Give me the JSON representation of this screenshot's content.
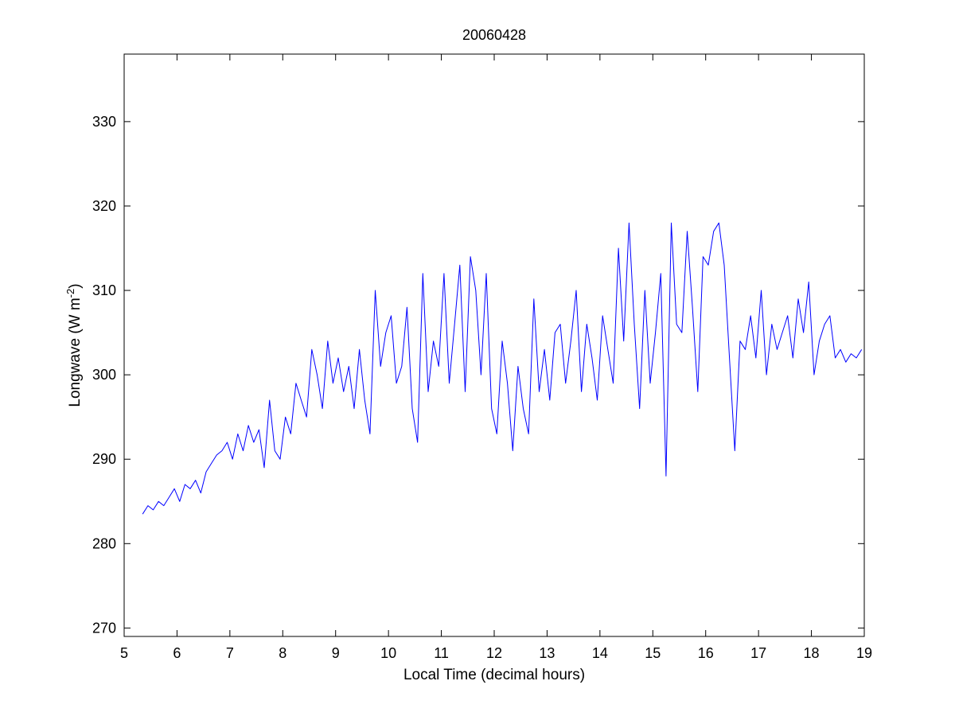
{
  "chart_data": {
    "type": "line",
    "title": "20060428",
    "xlabel": "Local Time (decimal hours)",
    "ylabel_main": "Longwave (W m",
    "ylabel_superscript": "-2",
    "ylabel_close": ")",
    "xlim": [
      5,
      19
    ],
    "ylim": [
      269,
      338
    ],
    "xticks": [
      "5",
      "6",
      "7",
      "8",
      "9",
      "10",
      "11",
      "12",
      "13",
      "14",
      "15",
      "16",
      "17",
      "18",
      "19"
    ],
    "yticks": [
      "270",
      "280",
      "290",
      "300",
      "310",
      "320",
      "330"
    ],
    "grid": false,
    "series_color": "#0000ff",
    "series": [
      {
        "x": [
          5.35,
          5.45,
          5.55,
          5.65,
          5.75,
          5.85,
          5.95,
          6.05,
          6.15,
          6.25,
          6.35,
          6.45,
          6.55,
          6.65,
          6.75,
          6.85,
          6.95,
          7.05,
          7.15,
          7.25,
          7.35,
          7.45,
          7.55,
          7.65,
          7.75,
          7.85,
          7.95,
          8.05,
          8.15,
          8.25,
          8.35,
          8.45,
          8.55,
          8.65,
          8.75,
          8.85,
          8.95,
          9.05,
          9.15,
          9.25,
          9.35,
          9.45,
          9.55,
          9.65,
          9.75,
          9.85,
          9.95,
          10.05,
          10.15,
          10.25,
          10.35,
          10.45,
          10.55,
          10.65,
          10.75,
          10.85,
          10.95,
          11.05,
          11.15,
          11.25,
          11.35,
          11.45,
          11.55,
          11.65,
          11.75,
          11.85,
          11.95,
          12.05,
          12.15,
          12.25,
          12.35,
          12.45,
          12.55,
          12.65,
          12.75,
          12.85,
          12.95,
          13.05,
          13.15,
          13.25,
          13.35,
          13.45,
          13.55,
          13.65,
          13.75,
          13.85,
          13.95,
          14.05,
          14.15,
          14.25,
          14.35,
          14.45,
          14.55,
          14.65,
          14.75,
          14.85,
          14.95,
          15.05,
          15.15,
          15.25,
          15.35,
          15.45,
          15.55,
          15.65,
          15.75,
          15.85,
          15.95,
          16.05,
          16.15,
          16.25,
          16.35,
          16.45,
          16.55,
          16.65,
          16.75,
          16.85,
          16.95,
          17.05,
          17.15,
          17.25,
          17.35,
          17.45,
          17.55,
          17.65,
          17.75,
          17.85,
          17.95,
          18.05,
          18.15,
          18.25,
          18.35,
          18.45,
          18.55,
          18.65,
          18.75,
          18.85,
          18.95
        ],
        "y": [
          283.5,
          284.5,
          284,
          285,
          284.5,
          285.5,
          286.5,
          285,
          287,
          286.5,
          287.5,
          286,
          288.5,
          289.5,
          290.5,
          291,
          292,
          290,
          293,
          291,
          294,
          292,
          293.5,
          289,
          297,
          291,
          290,
          295,
          293,
          299,
          297,
          295,
          303,
          300,
          296,
          304,
          299,
          302,
          298,
          301,
          296,
          303,
          297,
          293,
          310,
          301,
          305,
          307,
          299,
          301,
          308,
          296,
          292,
          312,
          298,
          304,
          301,
          312,
          299,
          306,
          313,
          298,
          314,
          310,
          300,
          312,
          296,
          293,
          304,
          299,
          291,
          301,
          296,
          293,
          309,
          298,
          303,
          297,
          305,
          306,
          299,
          304,
          310,
          298,
          306,
          302,
          297,
          307,
          303,
          299,
          315,
          304,
          318,
          306,
          296,
          310,
          299,
          305,
          312,
          288,
          318,
          306,
          305,
          317,
          308,
          298,
          314,
          313,
          317,
          318,
          313,
          302,
          291,
          304,
          303,
          307,
          302,
          310,
          300,
          306,
          303,
          305,
          307,
          302,
          309,
          305,
          311,
          300,
          304,
          306,
          307,
          302,
          303,
          301.5,
          302.5,
          302,
          303
        ]
      }
    ]
  }
}
